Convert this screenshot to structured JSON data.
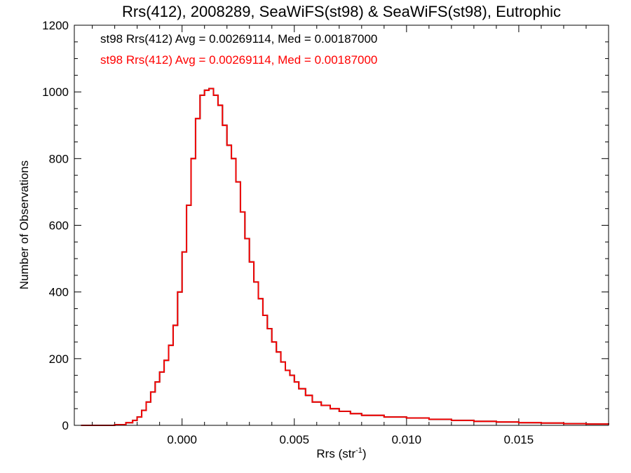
{
  "chart_data": {
    "type": "histogram",
    "title": "Rrs(412), 2008289, SeaWiFS(st98) & SeaWiFS(st98), Eutrophic",
    "xlabel": "Rrs (str",
    "xlabel_sup": "-1",
    "xlabel_close": ")",
    "ylabel": "Number of Observations",
    "xlim": [
      -0.0048,
      0.019
    ],
    "ylim": [
      0,
      1200
    ],
    "x_ticks": [
      0.0,
      0.005,
      0.01,
      0.015
    ],
    "x_tick_labels": [
      "0.000",
      "0.005",
      "0.010",
      "0.015"
    ],
    "y_ticks": [
      0,
      200,
      400,
      600,
      800,
      1000,
      1200
    ],
    "y_tick_labels": [
      "0",
      "200",
      "400",
      "600",
      "800",
      "1000",
      "1200"
    ],
    "grid": false,
    "series": [
      {
        "name": "st98 Rrs(412) Avg = 0.00269114, Med = 0.00187000",
        "color": "#000000",
        "x": [
          -0.0045,
          -0.003,
          -0.0025,
          -0.0022,
          -0.002,
          -0.0018,
          -0.0016,
          -0.0014,
          -0.0012,
          -0.001,
          -0.0008,
          -0.0006,
          -0.0004,
          -0.0002,
          0.0,
          0.0002,
          0.0004,
          0.0006,
          0.0008,
          0.001,
          0.0012,
          0.0014,
          0.0016,
          0.0018,
          0.002,
          0.0022,
          0.0024,
          0.0026,
          0.0028,
          0.003,
          0.0032,
          0.0034,
          0.0036,
          0.0038,
          0.004,
          0.0042,
          0.0044,
          0.0046,
          0.0048,
          0.005,
          0.0052,
          0.0055,
          0.0058,
          0.0062,
          0.0066,
          0.007,
          0.0075,
          0.008,
          0.009,
          0.01,
          0.011,
          0.012,
          0.013,
          0.014,
          0.015,
          0.016,
          0.017,
          0.018,
          0.019
        ],
        "values": [
          0,
          2,
          8,
          15,
          25,
          45,
          70,
          100,
          130,
          160,
          195,
          240,
          300,
          400,
          520,
          660,
          800,
          920,
          990,
          1005,
          1010,
          990,
          960,
          900,
          840,
          800,
          730,
          640,
          560,
          490,
          430,
          380,
          330,
          290,
          250,
          220,
          190,
          165,
          150,
          130,
          110,
          90,
          70,
          60,
          50,
          42,
          35,
          30,
          25,
          22,
          18,
          15,
          12,
          10,
          8,
          7,
          5,
          4,
          2
        ]
      },
      {
        "name": "st98 Rrs(412) Avg = 0.00269114, Med = 0.00187000",
        "color": "#ff0000",
        "x": [
          -0.0045,
          -0.003,
          -0.0025,
          -0.0022,
          -0.002,
          -0.0018,
          -0.0016,
          -0.0014,
          -0.0012,
          -0.001,
          -0.0008,
          -0.0006,
          -0.0004,
          -0.0002,
          0.0,
          0.0002,
          0.0004,
          0.0006,
          0.0008,
          0.001,
          0.0012,
          0.0014,
          0.0016,
          0.0018,
          0.002,
          0.0022,
          0.0024,
          0.0026,
          0.0028,
          0.003,
          0.0032,
          0.0034,
          0.0036,
          0.0038,
          0.004,
          0.0042,
          0.0044,
          0.0046,
          0.0048,
          0.005,
          0.0052,
          0.0055,
          0.0058,
          0.0062,
          0.0066,
          0.007,
          0.0075,
          0.008,
          0.009,
          0.01,
          0.011,
          0.012,
          0.013,
          0.014,
          0.015,
          0.016,
          0.017,
          0.018,
          0.019
        ],
        "values": [
          0,
          2,
          8,
          15,
          25,
          45,
          70,
          100,
          130,
          160,
          195,
          240,
          300,
          400,
          520,
          660,
          800,
          920,
          990,
          1005,
          1010,
          990,
          960,
          900,
          840,
          800,
          730,
          640,
          560,
          490,
          430,
          380,
          330,
          290,
          250,
          220,
          190,
          165,
          150,
          130,
          110,
          90,
          70,
          60,
          50,
          42,
          35,
          30,
          25,
          22,
          18,
          15,
          12,
          10,
          8,
          7,
          5,
          4,
          2
        ]
      }
    ]
  }
}
